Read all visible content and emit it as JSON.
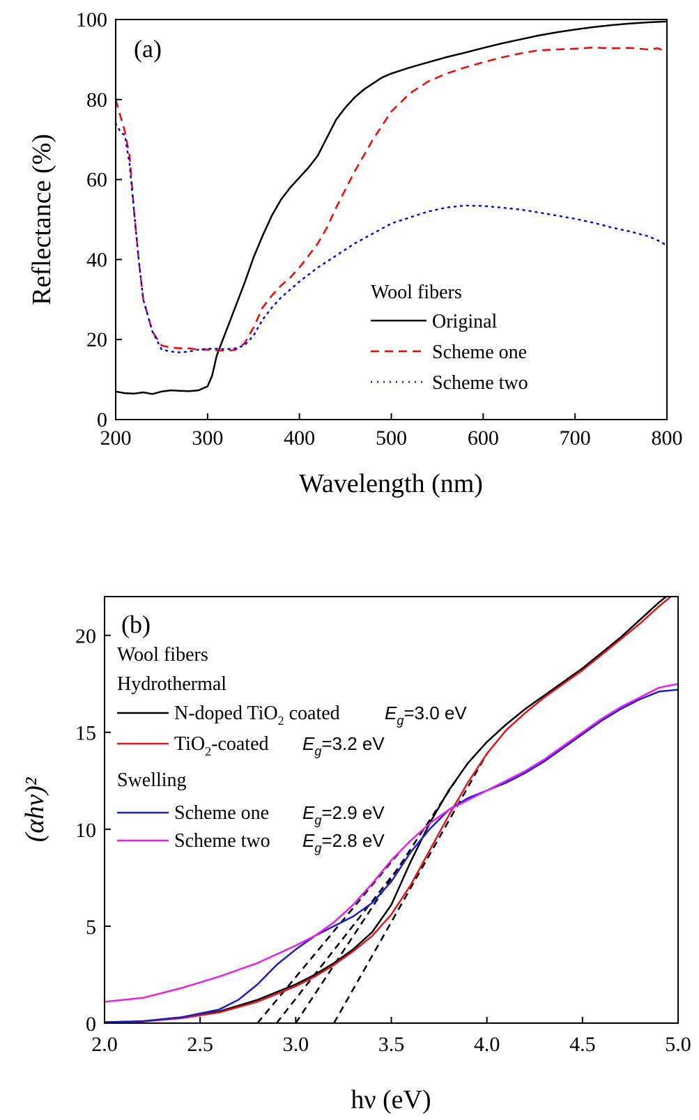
{
  "chart_data": [
    {
      "type": "line",
      "panel_label": "(a)",
      "xlabel": "Wavelength (nm)",
      "ylabel": "Reflectance (%)",
      "xlim": [
        200,
        800
      ],
      "ylim": [
        0,
        100
      ],
      "xticks": [
        "200",
        "300",
        "400",
        "500",
        "600",
        "700",
        "800"
      ],
      "yticks": [
        "0",
        "20",
        "40",
        "60",
        "80",
        "100"
      ],
      "grid": false,
      "legend_position": "bottom-right",
      "legend_title": "Wool fibers",
      "series": [
        {
          "name": "Original",
          "color": "#000000",
          "style": "solid",
          "x": [
            200,
            210,
            220,
            230,
            240,
            250,
            260,
            270,
            280,
            290,
            300,
            305,
            310,
            320,
            330,
            340,
            350,
            360,
            370,
            380,
            390,
            400,
            410,
            420,
            430,
            440,
            450,
            460,
            470,
            480,
            490,
            500,
            520,
            540,
            560,
            580,
            600,
            620,
            640,
            660,
            680,
            700,
            720,
            740,
            760,
            780,
            800
          ],
          "y": [
            7,
            6.6,
            6.5,
            6.8,
            6.4,
            7,
            7.3,
            7.2,
            7.1,
            7.3,
            8.3,
            11,
            16,
            22,
            28,
            34,
            40.5,
            46,
            51,
            55,
            58,
            60.5,
            63,
            66,
            70.5,
            75,
            78,
            80.5,
            82.5,
            84,
            85.5,
            86.5,
            88,
            89.3,
            90.6,
            91.7,
            92.9,
            94,
            95,
            96,
            96.8,
            97.5,
            98.1,
            98.6,
            99,
            99.3,
            99.5
          ]
        },
        {
          "name": "Scheme one",
          "color": "#ff0000",
          "style": "dashed",
          "x": [
            200,
            205,
            210,
            215,
            220,
            225,
            230,
            240,
            250,
            260,
            270,
            280,
            290,
            300,
            310,
            320,
            330,
            340,
            350,
            360,
            370,
            380,
            390,
            400,
            410,
            420,
            430,
            440,
            450,
            460,
            470,
            480,
            490,
            500,
            520,
            540,
            560,
            580,
            600,
            620,
            640,
            660,
            680,
            700,
            720,
            740,
            760,
            780,
            790,
            800
          ],
          "y": [
            80,
            76,
            72,
            66,
            52,
            40,
            30,
            22,
            18.5,
            18,
            17.8,
            17.8,
            17.5,
            17.5,
            17.3,
            17.2,
            17.4,
            19,
            23,
            28,
            31,
            33.5,
            35.5,
            38,
            41,
            44,
            48,
            53,
            57.5,
            62,
            66,
            70,
            73.5,
            77,
            81.5,
            84.5,
            86.5,
            88,
            89.3,
            90.5,
            91.5,
            92.3,
            92.5,
            92.7,
            93,
            92.8,
            92.9,
            92.5,
            92.8,
            92
          ]
        },
        {
          "name": "Scheme two",
          "color": "#0000ff",
          "style": "dotted",
          "x": [
            200,
            205,
            210,
            215,
            220,
            225,
            230,
            240,
            250,
            260,
            270,
            280,
            290,
            300,
            310,
            320,
            330,
            340,
            350,
            360,
            370,
            380,
            390,
            400,
            420,
            440,
            460,
            480,
            500,
            520,
            540,
            560,
            580,
            600,
            620,
            640,
            660,
            680,
            700,
            720,
            740,
            760,
            780,
            790,
            800
          ],
          "y": [
            74,
            72,
            71,
            64,
            52,
            40,
            30,
            22,
            17.5,
            17,
            16.8,
            17,
            17.5,
            17.7,
            17.7,
            17.6,
            17.8,
            18.5,
            21,
            25,
            28,
            30.5,
            32.5,
            34.5,
            38,
            41,
            44,
            46.5,
            49,
            50.5,
            52,
            53,
            53.5,
            53.4,
            53,
            52.5,
            51.8,
            51,
            50.2,
            49.2,
            48,
            47,
            45.8,
            44.8,
            43.5
          ]
        }
      ]
    },
    {
      "type": "line",
      "panel_label": "(b)",
      "xlabel": "hν (eV)",
      "ylabel": "(αhν)²",
      "xlim": [
        2.0,
        5.0
      ],
      "ylim": [
        0,
        22
      ],
      "xticks": [
        "2.0",
        "2.5",
        "3.0",
        "3.5",
        "4.0",
        "4.5",
        "5.0"
      ],
      "yticks": [
        "0",
        "5",
        "10",
        "15",
        "20"
      ],
      "grid": false,
      "legend_position": "top-left",
      "legend_title": "Wool fibers",
      "legend_groups": [
        {
          "title": "Hydrothermal",
          "entries": [
            {
              "label_main": "N-doped TiO",
              "label_sub": "2",
              "label_rest": " coated",
              "eg_prefix": "E",
              "eg_sub": "g",
              "eg_value": "=3.0 eV"
            },
            {
              "label_main": "TiO",
              "label_sub": "2",
              "label_rest": "-coated",
              "eg_prefix": "E",
              "eg_sub": "g",
              "eg_value": "=3.2 eV"
            }
          ]
        },
        {
          "title": "Swelling",
          "entries": [
            {
              "label_main": "Scheme one",
              "label_sub": "",
              "label_rest": "",
              "eg_prefix": "E",
              "eg_sub": "g",
              "eg_value": "=2.9 eV"
            },
            {
              "label_main": "Scheme two",
              "label_sub": "",
              "label_rest": "",
              "eg_prefix": "E",
              "eg_sub": "g",
              "eg_value": "=2.8 eV"
            }
          ]
        }
      ],
      "series": [
        {
          "name": "N-doped TiO2 coated",
          "color": "#000000",
          "x": [
            2.0,
            2.2,
            2.4,
            2.6,
            2.8,
            3.0,
            3.1,
            3.2,
            3.3,
            3.4,
            3.5,
            3.6,
            3.7,
            3.8,
            3.9,
            4.0,
            4.1,
            4.2,
            4.3,
            4.4,
            4.5,
            4.6,
            4.7,
            4.8,
            4.9,
            5.0
          ],
          "y": [
            0.05,
            0.1,
            0.3,
            0.6,
            1.2,
            2.0,
            2.5,
            3.1,
            3.8,
            4.7,
            6.1,
            8.3,
            10.3,
            12.0,
            13.4,
            14.5,
            15.4,
            16.2,
            16.9,
            17.6,
            18.3,
            19.1,
            19.9,
            20.8,
            21.7,
            22.5
          ]
        },
        {
          "name": "TiO2-coated",
          "color": "#e8141b",
          "x": [
            2.0,
            2.2,
            2.4,
            2.6,
            2.8,
            3.0,
            3.1,
            3.2,
            3.3,
            3.4,
            3.5,
            3.6,
            3.7,
            3.8,
            3.9,
            4.0,
            4.1,
            4.2,
            4.3,
            4.4,
            4.5,
            4.6,
            4.7,
            4.8,
            4.9,
            5.0
          ],
          "y": [
            0.02,
            0.08,
            0.25,
            0.55,
            1.1,
            1.9,
            2.4,
            3.0,
            3.7,
            4.5,
            5.6,
            7.1,
            8.9,
            10.7,
            12.4,
            13.9,
            15.1,
            16.0,
            16.8,
            17.5,
            18.2,
            19.0,
            19.8,
            20.6,
            21.5,
            22.3
          ]
        },
        {
          "name": "Scheme one",
          "color": "#1c1cd8",
          "x": [
            2.0,
            2.2,
            2.4,
            2.6,
            2.7,
            2.8,
            2.9,
            3.0,
            3.1,
            3.2,
            3.3,
            3.4,
            3.5,
            3.6,
            3.7,
            3.8,
            3.9,
            4.0,
            4.1,
            4.2,
            4.3,
            4.4,
            4.5,
            4.6,
            4.7,
            4.8,
            4.9,
            5.0
          ],
          "y": [
            0.05,
            0.1,
            0.3,
            0.7,
            1.2,
            2.0,
            3.0,
            3.8,
            4.5,
            5.0,
            5.5,
            6.2,
            7.3,
            8.8,
            10.0,
            11.0,
            11.6,
            12.0,
            12.4,
            12.9,
            13.5,
            14.2,
            14.9,
            15.6,
            16.2,
            16.7,
            17.1,
            17.2
          ]
        },
        {
          "name": "Scheme two",
          "color": "#ee1bee",
          "x": [
            2.0,
            2.2,
            2.4,
            2.6,
            2.8,
            3.0,
            3.1,
            3.2,
            3.3,
            3.4,
            3.5,
            3.6,
            3.7,
            3.8,
            3.9,
            4.0,
            4.1,
            4.2,
            4.3,
            4.4,
            4.5,
            4.6,
            4.7,
            4.8,
            4.9,
            5.0
          ],
          "y": [
            1.1,
            1.3,
            1.8,
            2.4,
            3.1,
            4.0,
            4.5,
            5.2,
            6.1,
            7.2,
            8.4,
            9.4,
            10.3,
            11.0,
            11.5,
            12.0,
            12.5,
            13.0,
            13.6,
            14.3,
            15.0,
            15.7,
            16.3,
            16.8,
            17.3,
            17.5
          ]
        }
      ],
      "tangent_lines": [
        {
          "x0": 2.8,
          "x1": 3.55
        },
        {
          "x0": 2.9,
          "x1": 3.6
        },
        {
          "x0": 3.0,
          "x1": 3.85
        },
        {
          "x0": 3.2,
          "x1": 4.0
        }
      ]
    }
  ]
}
